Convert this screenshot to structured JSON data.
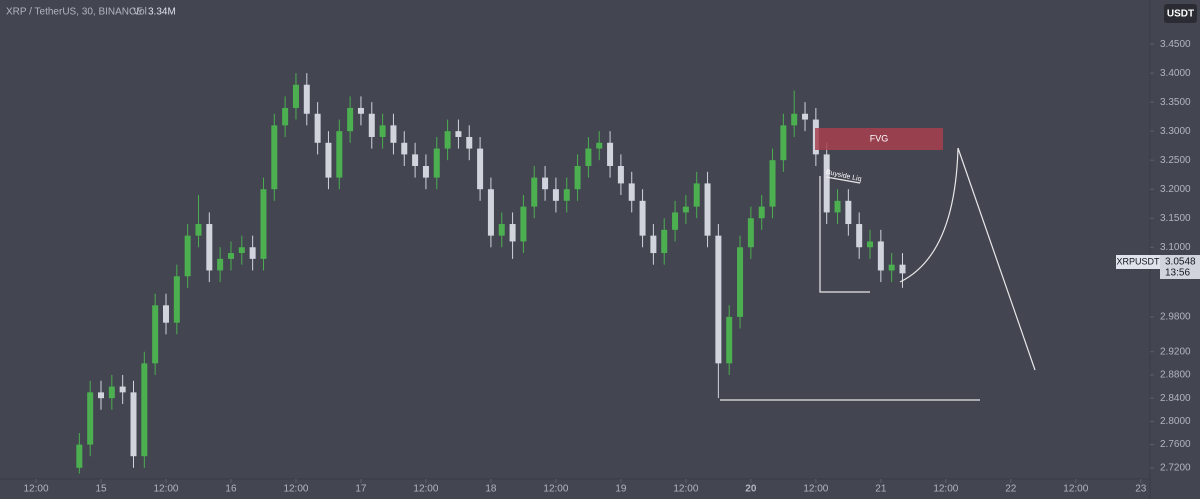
{
  "chart_data": {
    "type": "candlestick",
    "title": "XRP / TetherUS, 30, BINANCE",
    "volume_label": "Vol",
    "volume_value": "3.34M",
    "currency_button": "USDT",
    "symbol_label": "XRPUSDT",
    "price_label": "3.0548",
    "countdown_label": "13:56",
    "annotations": [
      "FVG",
      "Buyside Liq"
    ],
    "up_color": "#4caf50",
    "down_color": "#d1d4dc",
    "x": [
      20,
      22,
      24,
      26,
      28,
      30,
      32,
      34,
      36,
      38,
      40,
      42,
      44,
      46,
      48,
      50,
      52,
      54,
      56,
      58,
      60,
      62,
      64,
      66,
      68,
      70,
      72,
      74,
      76,
      78,
      80,
      82,
      84,
      86,
      88,
      90,
      92,
      94,
      96,
      98,
      100,
      102,
      104,
      106,
      108,
      110,
      112,
      114,
      116,
      118,
      120,
      122,
      124,
      126,
      128,
      130,
      132,
      134,
      136,
      138,
      140,
      142,
      144,
      146,
      148,
      150,
      152,
      154,
      156,
      158,
      160,
      162,
      164,
      166,
      168,
      170,
      172
    ],
    "open": [
      2.72,
      2.76,
      2.85,
      2.84,
      2.86,
      2.85,
      2.74,
      2.9,
      3.0,
      2.97,
      3.05,
      3.12,
      3.14,
      3.06,
      3.08,
      3.09,
      3.1,
      3.08,
      3.2,
      3.31,
      3.34,
      3.38,
      3.33,
      3.28,
      3.22,
      3.3,
      3.34,
      3.33,
      3.29,
      3.31,
      3.28,
      3.26,
      3.24,
      3.22,
      3.27,
      3.3,
      3.29,
      3.27,
      3.2,
      3.12,
      3.14,
      3.11,
      3.17,
      3.22,
      3.2,
      3.18,
      3.2,
      3.24,
      3.27,
      3.28,
      3.24,
      3.21,
      3.18,
      3.12,
      3.09,
      3.13,
      3.16,
      3.17,
      3.21,
      3.12,
      2.9,
      2.98,
      3.1,
      3.15,
      3.17,
      3.25,
      3.31,
      3.33,
      3.32,
      3.26,
      3.16,
      3.18,
      3.14,
      3.1,
      3.11,
      3.06,
      3.07
    ],
    "high": [
      2.78,
      2.87,
      2.87,
      2.88,
      2.88,
      2.87,
      2.92,
      3.02,
      3.02,
      3.07,
      3.14,
      3.19,
      3.16,
      3.1,
      3.11,
      3.12,
      3.12,
      3.22,
      3.33,
      3.36,
      3.4,
      3.4,
      3.35,
      3.3,
      3.32,
      3.36,
      3.36,
      3.35,
      3.33,
      3.33,
      3.3,
      3.28,
      3.26,
      3.29,
      3.32,
      3.32,
      3.31,
      3.29,
      3.22,
      3.16,
      3.16,
      3.19,
      3.24,
      3.24,
      3.22,
      3.22,
      3.26,
      3.29,
      3.3,
      3.3,
      3.26,
      3.23,
      3.2,
      3.14,
      3.15,
      3.18,
      3.19,
      3.23,
      3.23,
      3.14,
      3.0,
      3.12,
      3.17,
      3.19,
      3.27,
      3.33,
      3.37,
      3.35,
      3.34,
      3.28,
      3.2,
      3.2,
      3.16,
      3.13,
      3.13,
      3.09,
      3.09
    ],
    "low": [
      2.71,
      2.74,
      2.82,
      2.82,
      2.83,
      2.72,
      2.72,
      2.88,
      2.95,
      2.95,
      3.03,
      3.1,
      3.04,
      3.04,
      3.06,
      3.07,
      3.06,
      3.06,
      3.18,
      3.29,
      3.32,
      3.31,
      3.26,
      3.2,
      3.2,
      3.28,
      3.31,
      3.27,
      3.27,
      3.26,
      3.24,
      3.22,
      3.2,
      3.2,
      3.25,
      3.27,
      3.25,
      3.18,
      3.1,
      3.1,
      3.08,
      3.09,
      3.15,
      3.18,
      3.16,
      3.16,
      3.18,
      3.22,
      3.25,
      3.22,
      3.19,
      3.16,
      3.1,
      3.07,
      3.07,
      3.11,
      3.14,
      3.15,
      3.1,
      2.84,
      2.88,
      2.96,
      3.08,
      3.13,
      3.15,
      3.23,
      3.29,
      3.3,
      3.24,
      3.14,
      3.14,
      3.12,
      3.08,
      3.08,
      3.04,
      3.04,
      3.03
    ],
    "close": [
      2.76,
      2.85,
      2.84,
      2.86,
      2.85,
      2.74,
      2.9,
      3.0,
      2.97,
      3.05,
      3.12,
      3.14,
      3.06,
      3.08,
      3.09,
      3.1,
      3.08,
      3.2,
      3.31,
      3.34,
      3.38,
      3.33,
      3.28,
      3.22,
      3.3,
      3.34,
      3.33,
      3.29,
      3.31,
      3.28,
      3.26,
      3.24,
      3.22,
      3.27,
      3.3,
      3.29,
      3.27,
      3.2,
      3.12,
      3.14,
      3.11,
      3.17,
      3.22,
      3.2,
      3.18,
      3.2,
      3.24,
      3.27,
      3.28,
      3.24,
      3.21,
      3.18,
      3.12,
      3.09,
      3.13,
      3.16,
      3.17,
      3.21,
      3.12,
      2.9,
      2.98,
      3.1,
      3.15,
      3.17,
      3.25,
      3.31,
      3.33,
      3.32,
      3.26,
      3.16,
      3.18,
      3.14,
      3.1,
      3.11,
      3.06,
      3.07,
      3.055
    ],
    "xlim": [
      5.35,
      217.7
    ],
    "xticks": [
      {
        "value": 12,
        "label": "12:00"
      },
      {
        "value": 24,
        "label": "15"
      },
      {
        "value": 36,
        "label": "12:00"
      },
      {
        "value": 48,
        "label": "16"
      },
      {
        "value": 60,
        "label": "12:00"
      },
      {
        "value": 72,
        "label": "17"
      },
      {
        "value": 84,
        "label": "12:00"
      },
      {
        "value": 96,
        "label": "18"
      },
      {
        "value": 108,
        "label": "12:00"
      },
      {
        "value": 120,
        "label": "19"
      },
      {
        "value": 132,
        "label": "12:00"
      },
      {
        "value": 144,
        "label": "20"
      },
      {
        "value": 156,
        "label": "12:00"
      },
      {
        "value": 168,
        "label": "21"
      },
      {
        "value": 180,
        "label": "12:00"
      },
      {
        "value": 192,
        "label": "22"
      },
      {
        "value": 204,
        "label": "12:00"
      },
      {
        "value": 216,
        "label": "23"
      }
    ],
    "ylim": [
      2.699,
      3.526
    ],
    "yticks": [
      {
        "value": 3.45,
        "label": "3.4500"
      },
      {
        "value": 3.4,
        "label": "3.4000"
      },
      {
        "value": 3.35,
        "label": "3.3500"
      },
      {
        "value": 3.3,
        "label": "3.3000"
      },
      {
        "value": 3.25,
        "label": "3.2500"
      },
      {
        "value": 3.2,
        "label": "3.2000"
      },
      {
        "value": 3.15,
        "label": "3.1500"
      },
      {
        "value": 3.1,
        "label": "3.1000"
      },
      {
        "value": 2.98,
        "label": "2.9800"
      },
      {
        "value": 2.92,
        "label": "2.9200"
      },
      {
        "value": 2.88,
        "label": "2.8800"
      },
      {
        "value": 2.84,
        "label": "2.8400"
      },
      {
        "value": 2.8,
        "label": "2.8000"
      },
      {
        "value": 2.76,
        "label": "2.7600"
      },
      {
        "value": 2.72,
        "label": "2.7200"
      }
    ]
  }
}
